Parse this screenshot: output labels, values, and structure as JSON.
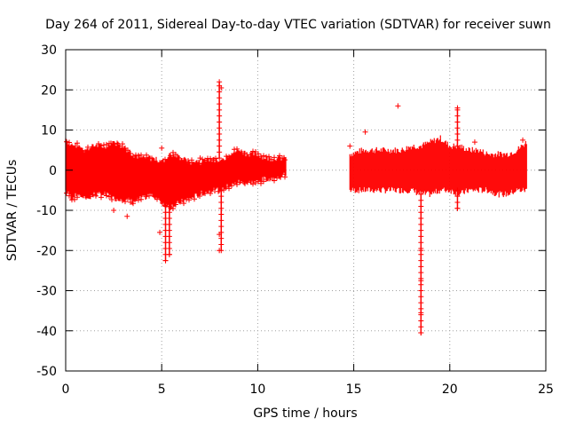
{
  "chart_data": {
    "type": "scatter",
    "title": "Day 264 of 2011, Sidereal Day-to-day VTEC variation (SDTVAR) for receiver suwn",
    "xlabel": "GPS time / hours",
    "ylabel": "SDTVAR / TECUs",
    "xlim": [
      0,
      25
    ],
    "ylim": [
      -50,
      30
    ],
    "xticks": [
      0,
      5,
      10,
      15,
      20,
      25
    ],
    "yticks": [
      -50,
      -40,
      -30,
      -20,
      -10,
      0,
      10,
      20,
      30
    ],
    "grid": true,
    "marker": "+",
    "series_color": "#ff0000",
    "envelope": {
      "description": "dense band of points; upper/lower edge of the point cloud",
      "x": [
        0.0,
        0.3,
        0.7,
        1.0,
        1.5,
        2.0,
        2.5,
        3.0,
        3.5,
        4.0,
        4.5,
        5.0,
        5.5,
        6.0,
        6.5,
        7.0,
        7.5,
        8.0,
        8.5,
        9.0,
        9.5,
        10.0,
        10.5,
        11.0,
        11.5
      ],
      "upper": [
        8,
        6,
        6,
        5,
        6,
        6,
        7,
        6,
        4,
        3,
        3,
        2,
        4,
        3,
        2,
        2,
        3,
        2,
        4,
        5,
        4,
        4,
        3,
        3,
        3
      ],
      "lower": [
        -5,
        -7,
        -6,
        -7,
        -6,
        -6,
        -7,
        -7,
        -8,
        -7,
        -6,
        -8,
        -9,
        -8,
        -7,
        -6,
        -5,
        -5,
        -4,
        -3,
        -3,
        -3,
        -2,
        -2,
        -1
      ],
      "x2": [
        14.8,
        15.5,
        16.0,
        16.5,
        17.0,
        17.5,
        18.0,
        18.5,
        19.0,
        19.5,
        20.0,
        20.5,
        21.0,
        21.5,
        22.0,
        22.5,
        23.0,
        23.5,
        24.0
      ],
      "upper2": [
        4,
        5,
        5,
        5,
        5,
        5,
        6,
        6,
        7,
        8,
        6,
        6,
        5,
        5,
        4,
        4,
        4,
        5,
        7
      ],
      "lower2": [
        -5,
        -5,
        -5,
        -5,
        -5,
        -5,
        -5,
        -6,
        -6,
        -5,
        -5,
        -6,
        -5,
        -5,
        -5,
        -6,
        -6,
        -5,
        -5
      ]
    },
    "spikes": [
      {
        "x": 8.0,
        "y": 22.0
      },
      {
        "x": 8.1,
        "y": 20.5
      },
      {
        "x": 8.0,
        "y": -20.0
      },
      {
        "x": 5.2,
        "y": -22.5
      },
      {
        "x": 5.4,
        "y": -21.0
      },
      {
        "x": 4.9,
        "y": -15.5
      },
      {
        "x": 5.0,
        "y": 5.5
      },
      {
        "x": 17.3,
        "y": 16.0
      },
      {
        "x": 15.6,
        "y": 9.5
      },
      {
        "x": 14.8,
        "y": 6.0
      },
      {
        "x": 18.5,
        "y": -40.5
      },
      {
        "x": 18.5,
        "y": -35.5
      },
      {
        "x": 18.5,
        "y": -27.5
      },
      {
        "x": 18.5,
        "y": -20.0
      },
      {
        "x": 20.4,
        "y": 15.5
      },
      {
        "x": 20.4,
        "y": 12.0
      },
      {
        "x": 20.4,
        "y": -9.5
      },
      {
        "x": 2.5,
        "y": -10.0
      },
      {
        "x": 3.2,
        "y": -11.5
      },
      {
        "x": 7.0,
        "y": 3.0
      },
      {
        "x": 8.0,
        "y": -16.0
      },
      {
        "x": 21.3,
        "y": 7.0
      },
      {
        "x": 23.8,
        "y": 7.5
      }
    ]
  }
}
